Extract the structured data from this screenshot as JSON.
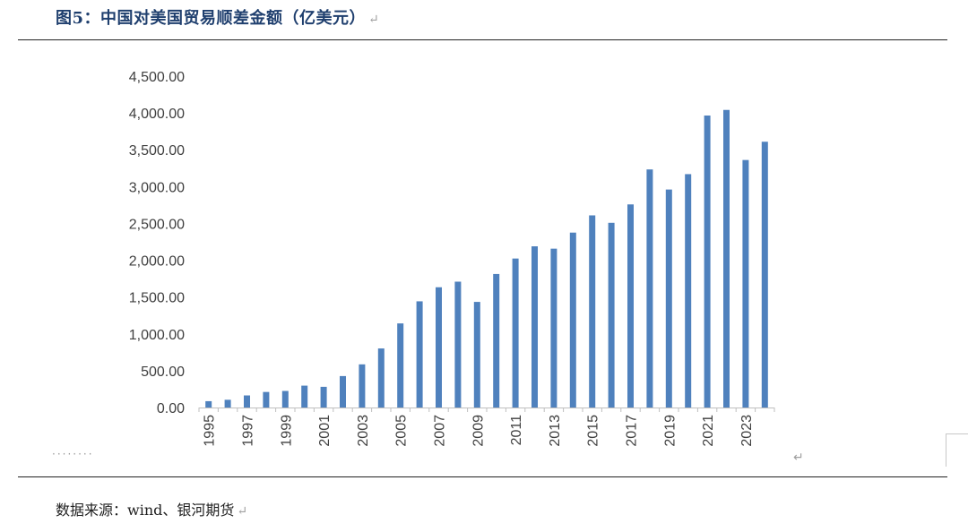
{
  "figure": {
    "title": "图5：中国对美国贸易顺差金额（亿美元）",
    "source": "数据来源：wind、银河期货",
    "return_mark": "↵",
    "dots": "········"
  },
  "chart_data": {
    "type": "bar",
    "title": "中国对美国贸易顺差金额（亿美元）",
    "xlabel": "",
    "ylabel": "",
    "ylim": [
      0,
      4500
    ],
    "yticks": [
      0,
      500,
      1000,
      1500,
      2000,
      2500,
      3000,
      3500,
      4000,
      4500
    ],
    "ytick_labels": [
      "0.00",
      "500.00",
      "1,000.00",
      "1,500.00",
      "2,000.00",
      "2,500.00",
      "3,000.00",
      "3,500.00",
      "4,000.00",
      "4,500.00"
    ],
    "grid": false,
    "legend": "none",
    "bar_color": "#4f81bd",
    "categories": [
      "1995",
      "1996",
      "1997",
      "1998",
      "1999",
      "2000",
      "2001",
      "2002",
      "2003",
      "2004",
      "2005",
      "2006",
      "2007",
      "2008",
      "2009",
      "2010",
      "2011",
      "2012",
      "2013",
      "2014",
      "2015",
      "2016",
      "2017",
      "2018",
      "2019",
      "2020",
      "2021",
      "2022",
      "2023",
      "2024"
    ],
    "xtick_labels": [
      "1995",
      "1997",
      "1999",
      "2001",
      "2003",
      "2005",
      "2007",
      "2009",
      "2011",
      "2013",
      "2015",
      "2017",
      "2019",
      "2021",
      "2023"
    ],
    "values": [
      86,
      105,
      164,
      211,
      225,
      297,
      281,
      427,
      586,
      802,
      1142,
      1442,
      1633,
      1709,
      1434,
      1813,
      2023,
      2189,
      2157,
      2375,
      2609,
      2508,
      2758,
      3233,
      2960,
      3169,
      3965,
      4041,
      3361,
      3609
    ]
  }
}
